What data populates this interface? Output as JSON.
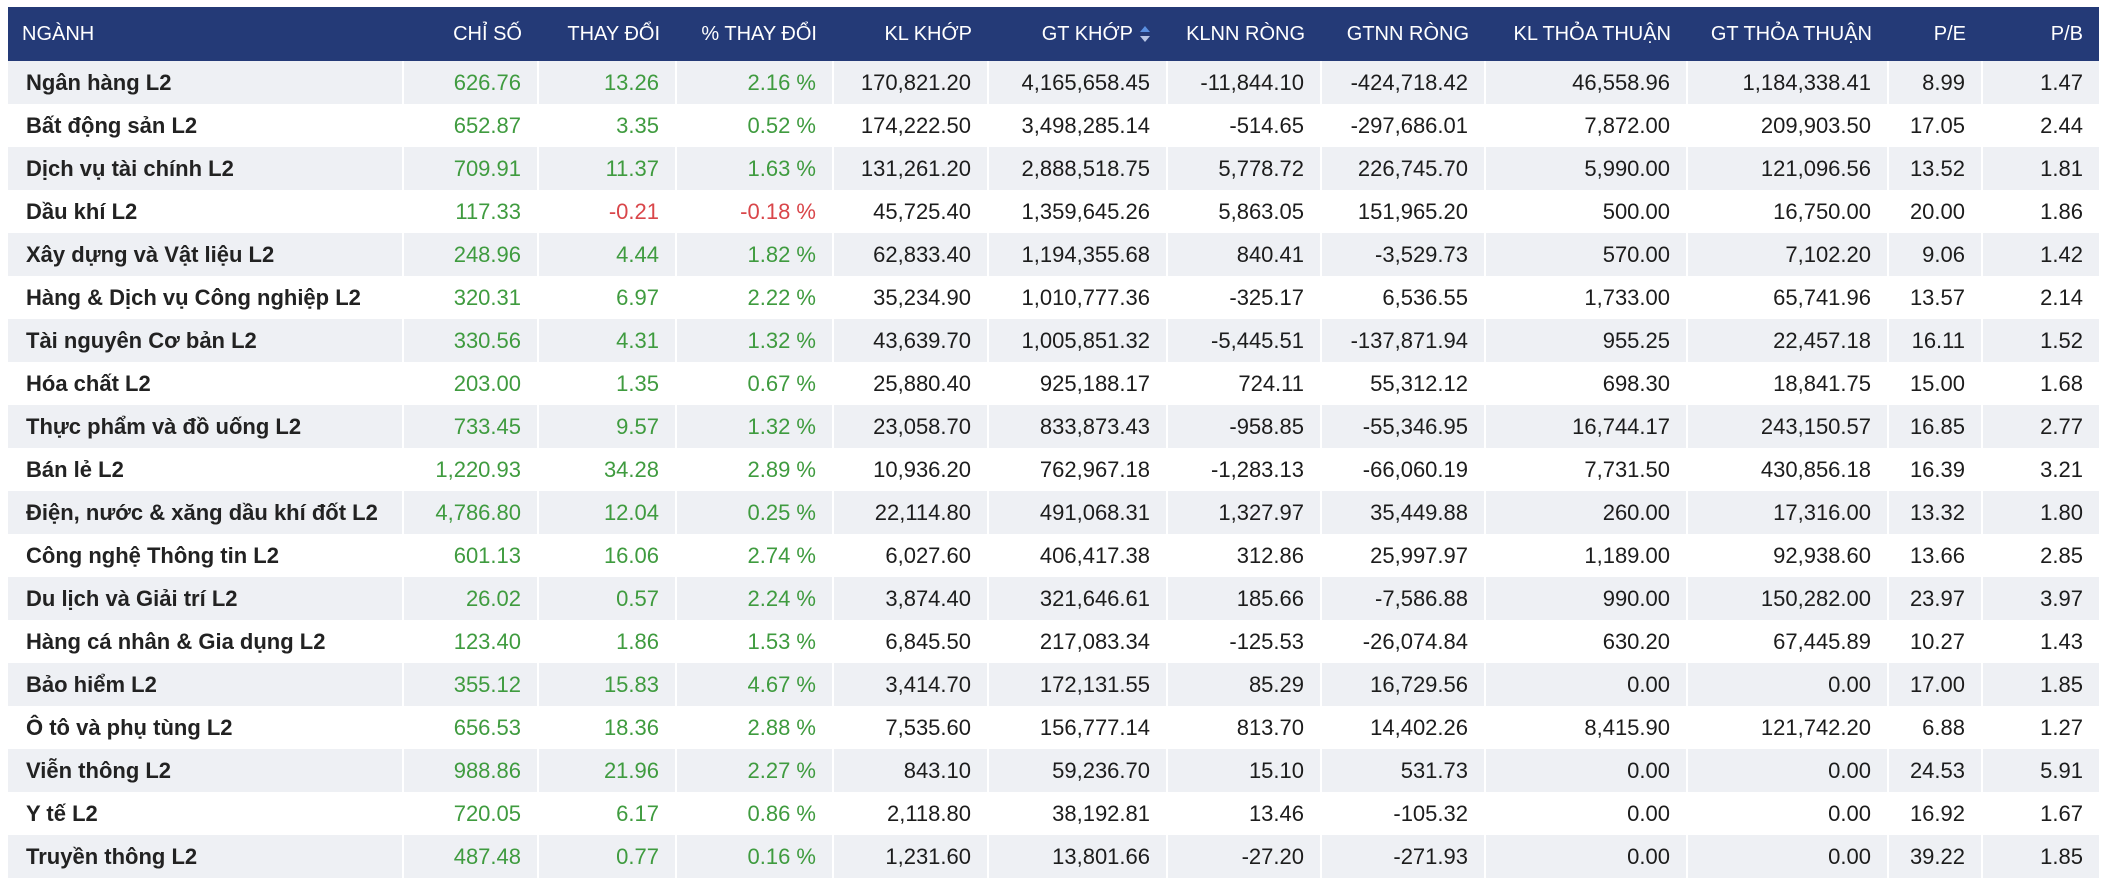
{
  "table": {
    "headers": [
      "NGÀNH",
      "CHỈ SỐ",
      "THAY ĐỔI",
      "% THAY ĐỔI",
      "KL KHỚP",
      "GT KHỚP",
      "KLNN RÒNG",
      "GTNN RÒNG",
      "KL THỎA THUẬN",
      "GT THỎA THUẬN",
      "P/E",
      "P/B"
    ],
    "rows": [
      [
        "Ngân hàng L2",
        "626.76",
        "13.26",
        "2.16 %",
        "170,821.20",
        "4,165,658.45",
        "-11,844.10",
        "-424,718.42",
        "46,558.96",
        "1,184,338.41",
        "8.99",
        "1.47"
      ],
      [
        "Bất động sản L2",
        "652.87",
        "3.35",
        "0.52 %",
        "174,222.50",
        "3,498,285.14",
        "-514.65",
        "-297,686.01",
        "7,872.00",
        "209,903.50",
        "17.05",
        "2.44"
      ],
      [
        "Dịch vụ tài chính L2",
        "709.91",
        "11.37",
        "1.63 %",
        "131,261.20",
        "2,888,518.75",
        "5,778.72",
        "226,745.70",
        "5,990.00",
        "121,096.56",
        "13.52",
        "1.81"
      ],
      [
        "Dầu khí L2",
        "117.33",
        "-0.21",
        "-0.18 %",
        "45,725.40",
        "1,359,645.26",
        "5,863.05",
        "151,965.20",
        "500.00",
        "16,750.00",
        "20.00",
        "1.86"
      ],
      [
        "Xây dựng và Vật liệu L2",
        "248.96",
        "4.44",
        "1.82 %",
        "62,833.40",
        "1,194,355.68",
        "840.41",
        "-3,529.73",
        "570.00",
        "7,102.20",
        "9.06",
        "1.42"
      ],
      [
        "Hàng & Dịch vụ Công nghiệp L2",
        "320.31",
        "6.97",
        "2.22 %",
        "35,234.90",
        "1,010,777.36",
        "-325.17",
        "6,536.55",
        "1,733.00",
        "65,741.96",
        "13.57",
        "2.14"
      ],
      [
        "Tài nguyên Cơ bản L2",
        "330.56",
        "4.31",
        "1.32 %",
        "43,639.70",
        "1,005,851.32",
        "-5,445.51",
        "-137,871.94",
        "955.25",
        "22,457.18",
        "16.11",
        "1.52"
      ],
      [
        "Hóa chất L2",
        "203.00",
        "1.35",
        "0.67 %",
        "25,880.40",
        "925,188.17",
        "724.11",
        "55,312.12",
        "698.30",
        "18,841.75",
        "15.00",
        "1.68"
      ],
      [
        "Thực phẩm và đồ uống L2",
        "733.45",
        "9.57",
        "1.32 %",
        "23,058.70",
        "833,873.43",
        "-958.85",
        "-55,346.95",
        "16,744.17",
        "243,150.57",
        "16.85",
        "2.77"
      ],
      [
        "Bán lẻ L2",
        "1,220.93",
        "34.28",
        "2.89 %",
        "10,936.20",
        "762,967.18",
        "-1,283.13",
        "-66,060.19",
        "7,731.50",
        "430,856.18",
        "16.39",
        "3.21"
      ],
      [
        "Điện, nước & xăng dầu khí đốt L2",
        "4,786.80",
        "12.04",
        "0.25 %",
        "22,114.80",
        "491,068.31",
        "1,327.97",
        "35,449.88",
        "260.00",
        "17,316.00",
        "13.32",
        "1.80"
      ],
      [
        "Công nghệ Thông tin L2",
        "601.13",
        "16.06",
        "2.74 %",
        "6,027.60",
        "406,417.38",
        "312.86",
        "25,997.97",
        "1,189.00",
        "92,938.60",
        "13.66",
        "2.85"
      ],
      [
        "Du lịch và Giải trí L2",
        "26.02",
        "0.57",
        "2.24 %",
        "3,874.40",
        "321,646.61",
        "185.66",
        "-7,586.88",
        "990.00",
        "150,282.00",
        "23.97",
        "3.97"
      ],
      [
        "Hàng cá nhân & Gia dụng L2",
        "123.40",
        "1.86",
        "1.53 %",
        "6,845.50",
        "217,083.34",
        "-125.53",
        "-26,074.84",
        "630.20",
        "67,445.89",
        "10.27",
        "1.43"
      ],
      [
        "Bảo hiểm L2",
        "355.12",
        "15.83",
        "4.67 %",
        "3,414.70",
        "172,131.55",
        "85.29",
        "16,729.56",
        "0.00",
        "0.00",
        "17.00",
        "1.85"
      ],
      [
        "Ô tô và phụ tùng L2",
        "656.53",
        "18.36",
        "2.88 %",
        "7,535.60",
        "156,777.14",
        "813.70",
        "14,402.26",
        "8,415.90",
        "121,742.20",
        "6.88",
        "1.27"
      ],
      [
        "Viễn thông L2",
        "988.86",
        "21.96",
        "2.27 %",
        "843.10",
        "59,236.70",
        "15.10",
        "531.73",
        "0.00",
        "0.00",
        "24.53",
        "5.91"
      ],
      [
        "Y tế L2",
        "720.05",
        "6.17",
        "0.86 %",
        "2,118.80",
        "38,192.81",
        "13.46",
        "-105.32",
        "0.00",
        "0.00",
        "16.92",
        "1.67"
      ],
      [
        "Truyền thông L2",
        "487.48",
        "0.77",
        "0.16 %",
        "1,231.60",
        "13,801.66",
        "-27.20",
        "-271.93",
        "0.00",
        "0.00",
        "39.22",
        "1.85"
      ]
    ]
  }
}
